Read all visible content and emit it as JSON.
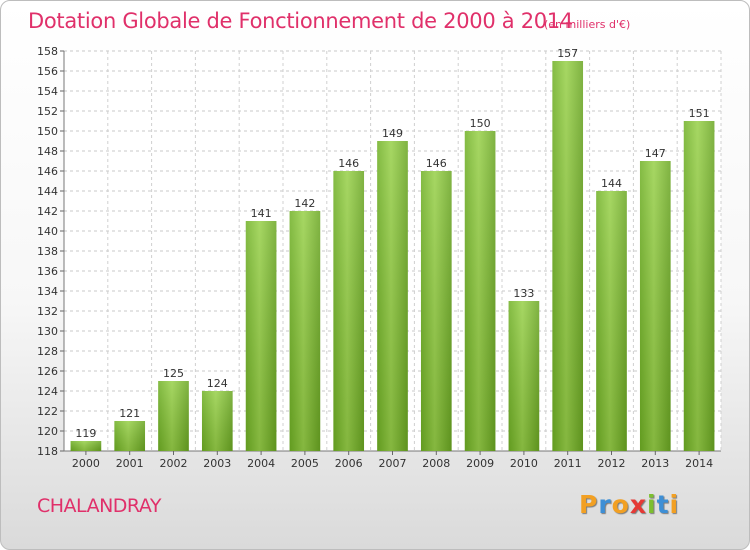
{
  "chart_data": {
    "type": "bar",
    "title": "Dotation Globale de Fonctionnement de 2000 à 2014",
    "subtitle": "(en milliers d'€)",
    "categories": [
      "2000",
      "2001",
      "2002",
      "2003",
      "2004",
      "2005",
      "2006",
      "2007",
      "2008",
      "2009",
      "2010",
      "2011",
      "2012",
      "2013",
      "2014"
    ],
    "values": [
      119,
      121,
      125,
      124,
      141,
      142,
      146,
      149,
      146,
      150,
      133,
      157,
      144,
      147,
      151
    ],
    "ylim": [
      118,
      158
    ],
    "ytick_step": 2,
    "grid": true,
    "bar_color": "#7dc12e"
  },
  "commune": "CHALANDRAY",
  "logo": {
    "letters": [
      "P",
      "r",
      "o",
      "x",
      "i",
      "t",
      "i"
    ],
    "colors": [
      "#f2a023",
      "#3d8fd6",
      "#f2a023",
      "#e53935",
      "#7cbf2f",
      "#3d8fd6",
      "#f2a023"
    ]
  }
}
